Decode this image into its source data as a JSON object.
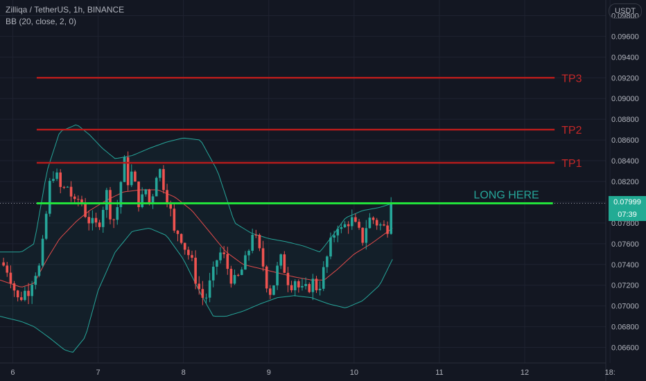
{
  "header": {
    "symbol_line": "Zilliqa / TetherUS, 1h, BINANCE",
    "indicator_line": "BB (20, close, 2, 0)"
  },
  "currency_button": "USDT",
  "price_tag": {
    "price": "0.07999",
    "countdown": "07:39",
    "color": "#22ab94"
  },
  "colors": {
    "background": "#131722",
    "grid": "#1f2331",
    "up": "#26a69a",
    "down": "#ef5350",
    "bb_band": "#26a69a",
    "bb_fill": "#26a69a",
    "bb_basis": "#e34b4b",
    "target_line": "#b71c1c",
    "target_text": "#c62828",
    "long_line": "#22e33a",
    "long_text": "#26a69a",
    "axis_text": "#b2b5be"
  },
  "chart_data": {
    "type": "candlestick",
    "symbol": "Zilliqa / TetherUS",
    "timeframe": "1h",
    "exchange": "BINANCE",
    "indicator": "BB (20, close, 2, 0)",
    "x_ticks": [
      "6",
      "7",
      "8",
      "9",
      "10",
      "11",
      "12",
      "18:"
    ],
    "x_tick_days": [
      6,
      7,
      8,
      9,
      10,
      11,
      12,
      13
    ],
    "y_ticks": [
      "0.09800",
      "0.09600",
      "0.09400",
      "0.09200",
      "0.09000",
      "0.08800",
      "0.08600",
      "0.08400",
      "0.08200",
      "0.08000",
      "0.07800",
      "0.07600",
      "0.07400",
      "0.07200",
      "0.07000",
      "0.06800",
      "0.06600"
    ],
    "ylim": [
      0.0645,
      0.0995
    ],
    "xlim_days": [
      5.85,
      12.95
    ],
    "annotations": [
      {
        "label": "TP3",
        "price": 0.092,
        "x_start_day": 6.28,
        "x_end_day": 12.35,
        "kind": "target"
      },
      {
        "label": "TP2",
        "price": 0.087,
        "x_start_day": 6.28,
        "x_end_day": 12.35,
        "kind": "target"
      },
      {
        "label": "TP1",
        "price": 0.0838,
        "x_start_day": 6.28,
        "x_end_day": 12.35,
        "kind": "target"
      },
      {
        "label": "LONG HERE",
        "price": 0.0799,
        "x_start_day": 6.28,
        "x_end_day": 12.33,
        "kind": "entry"
      }
    ],
    "close_path": [
      [
        5.85,
        0.0742
      ],
      [
        5.95,
        0.0735
      ],
      [
        6.0,
        0.0722
      ],
      [
        6.05,
        0.0705
      ],
      [
        6.12,
        0.0712
      ],
      [
        6.2,
        0.0718
      ],
      [
        6.25,
        0.0735
      ],
      [
        6.3,
        0.0732
      ],
      [
        6.36,
        0.0762
      ],
      [
        6.4,
        0.0795
      ],
      [
        6.43,
        0.0815
      ],
      [
        6.47,
        0.083
      ],
      [
        6.52,
        0.0822
      ],
      [
        6.58,
        0.0808
      ],
      [
        6.63,
        0.0818
      ],
      [
        6.68,
        0.0808
      ],
      [
        6.72,
        0.0795
      ],
      [
        6.78,
        0.0805
      ],
      [
        6.85,
        0.079
      ],
      [
        6.9,
        0.0782
      ],
      [
        6.95,
        0.0775
      ],
      [
        7.0,
        0.0778
      ],
      [
        7.05,
        0.0795
      ],
      [
        7.1,
        0.0808
      ],
      [
        7.15,
        0.0788
      ],
      [
        7.2,
        0.0782
      ],
      [
        7.25,
        0.081
      ],
      [
        7.3,
        0.084
      ],
      [
        7.35,
        0.0822
      ],
      [
        7.4,
        0.0828
      ],
      [
        7.45,
        0.0808
      ],
      [
        7.5,
        0.0796
      ],
      [
        7.55,
        0.0815
      ],
      [
        7.6,
        0.08
      ],
      [
        7.65,
        0.0812
      ],
      [
        7.7,
        0.0838
      ],
      [
        7.75,
        0.0822
      ],
      [
        7.8,
        0.081
      ],
      [
        7.85,
        0.079
      ],
      [
        7.9,
        0.0765
      ],
      [
        7.95,
        0.0775
      ],
      [
        8.0,
        0.076
      ],
      [
        8.05,
        0.0752
      ],
      [
        8.1,
        0.074
      ],
      [
        8.15,
        0.0725
      ],
      [
        8.2,
        0.0712
      ],
      [
        8.25,
        0.0705
      ],
      [
        8.3,
        0.0718
      ],
      [
        8.35,
        0.073
      ],
      [
        8.4,
        0.0748
      ],
      [
        8.45,
        0.0752
      ],
      [
        8.5,
        0.074
      ],
      [
        8.55,
        0.073
      ],
      [
        8.6,
        0.0722
      ],
      [
        8.65,
        0.0728
      ],
      [
        8.7,
        0.0738
      ],
      [
        8.75,
        0.0745
      ],
      [
        8.8,
        0.0775
      ],
      [
        8.85,
        0.0762
      ],
      [
        8.9,
        0.0748
      ],
      [
        8.95,
        0.0735
      ],
      [
        9.0,
        0.0712
      ],
      [
        9.05,
        0.072
      ],
      [
        9.1,
        0.0735
      ],
      [
        9.15,
        0.0745
      ],
      [
        9.2,
        0.0732
      ],
      [
        9.25,
        0.072
      ],
      [
        9.3,
        0.0728
      ],
      [
        9.35,
        0.0718
      ],
      [
        9.4,
        0.0712
      ],
      [
        9.45,
        0.0715
      ],
      [
        9.5,
        0.0725
      ],
      [
        9.55,
        0.0718
      ],
      [
        9.6,
        0.0722
      ],
      [
        9.65,
        0.0735
      ],
      [
        9.7,
        0.0752
      ],
      [
        9.75,
        0.0765
      ],
      [
        9.8,
        0.0782
      ],
      [
        9.85,
        0.0772
      ],
      [
        9.9,
        0.0778
      ],
      [
        9.95,
        0.0785
      ],
      [
        10.0,
        0.0778
      ],
      [
        10.05,
        0.077
      ],
      [
        10.1,
        0.0765
      ],
      [
        10.15,
        0.078
      ],
      [
        10.2,
        0.0785
      ],
      [
        10.25,
        0.0782
      ],
      [
        10.3,
        0.0778
      ],
      [
        10.35,
        0.0775
      ],
      [
        10.4,
        0.0778
      ],
      [
        10.43,
        0.0795
      ],
      [
        10.45,
        0.0799
      ]
    ],
    "bollinger_upper": [
      [
        5.85,
        0.0752
      ],
      [
        6.1,
        0.0752
      ],
      [
        6.25,
        0.076
      ],
      [
        6.4,
        0.083
      ],
      [
        6.55,
        0.0868
      ],
      [
        6.75,
        0.0875
      ],
      [
        6.9,
        0.0865
      ],
      [
        7.05,
        0.0852
      ],
      [
        7.2,
        0.0842
      ],
      [
        7.4,
        0.0845
      ],
      [
        7.6,
        0.0852
      ],
      [
        7.8,
        0.0858
      ],
      [
        8.0,
        0.0862
      ],
      [
        8.2,
        0.086
      ],
      [
        8.4,
        0.083
      ],
      [
        8.6,
        0.078
      ],
      [
        8.8,
        0.077
      ],
      [
        9.0,
        0.0765
      ],
      [
        9.2,
        0.0762
      ],
      [
        9.4,
        0.0758
      ],
      [
        9.6,
        0.0752
      ],
      [
        9.75,
        0.0768
      ],
      [
        9.9,
        0.0785
      ],
      [
        10.1,
        0.0792
      ],
      [
        10.3,
        0.0795
      ],
      [
        10.45,
        0.0799
      ]
    ],
    "bollinger_basis": [
      [
        5.85,
        0.0725
      ],
      [
        6.1,
        0.0718
      ],
      [
        6.25,
        0.0722
      ],
      [
        6.4,
        0.0745
      ],
      [
        6.55,
        0.0765
      ],
      [
        6.75,
        0.0782
      ],
      [
        6.9,
        0.0792
      ],
      [
        7.1,
        0.0802
      ],
      [
        7.3,
        0.081
      ],
      [
        7.5,
        0.0812
      ],
      [
        7.7,
        0.0812
      ],
      [
        7.9,
        0.0805
      ],
      [
        8.1,
        0.0792
      ],
      [
        8.3,
        0.0772
      ],
      [
        8.5,
        0.0752
      ],
      [
        8.7,
        0.074
      ],
      [
        8.9,
        0.0736
      ],
      [
        9.1,
        0.0732
      ],
      [
        9.3,
        0.0728
      ],
      [
        9.5,
        0.0725
      ],
      [
        9.65,
        0.0725
      ],
      [
        9.8,
        0.0735
      ],
      [
        10.0,
        0.075
      ],
      [
        10.2,
        0.076
      ],
      [
        10.45,
        0.0775
      ]
    ],
    "bollinger_lower": [
      [
        5.85,
        0.069
      ],
      [
        6.1,
        0.0685
      ],
      [
        6.25,
        0.068
      ],
      [
        6.45,
        0.0668
      ],
      [
        6.6,
        0.0658
      ],
      [
        6.7,
        0.0655
      ],
      [
        6.85,
        0.067
      ],
      [
        7.0,
        0.0715
      ],
      [
        7.2,
        0.0752
      ],
      [
        7.4,
        0.0772
      ],
      [
        7.6,
        0.0775
      ],
      [
        7.8,
        0.0768
      ],
      [
        8.0,
        0.0745
      ],
      [
        8.2,
        0.0712
      ],
      [
        8.35,
        0.069
      ],
      [
        8.5,
        0.069
      ],
      [
        8.7,
        0.0695
      ],
      [
        8.9,
        0.0702
      ],
      [
        9.1,
        0.0708
      ],
      [
        9.3,
        0.071
      ],
      [
        9.5,
        0.0708
      ],
      [
        9.7,
        0.0702
      ],
      [
        9.9,
        0.0698
      ],
      [
        10.1,
        0.0705
      ],
      [
        10.3,
        0.072
      ],
      [
        10.45,
        0.0745
      ]
    ]
  }
}
